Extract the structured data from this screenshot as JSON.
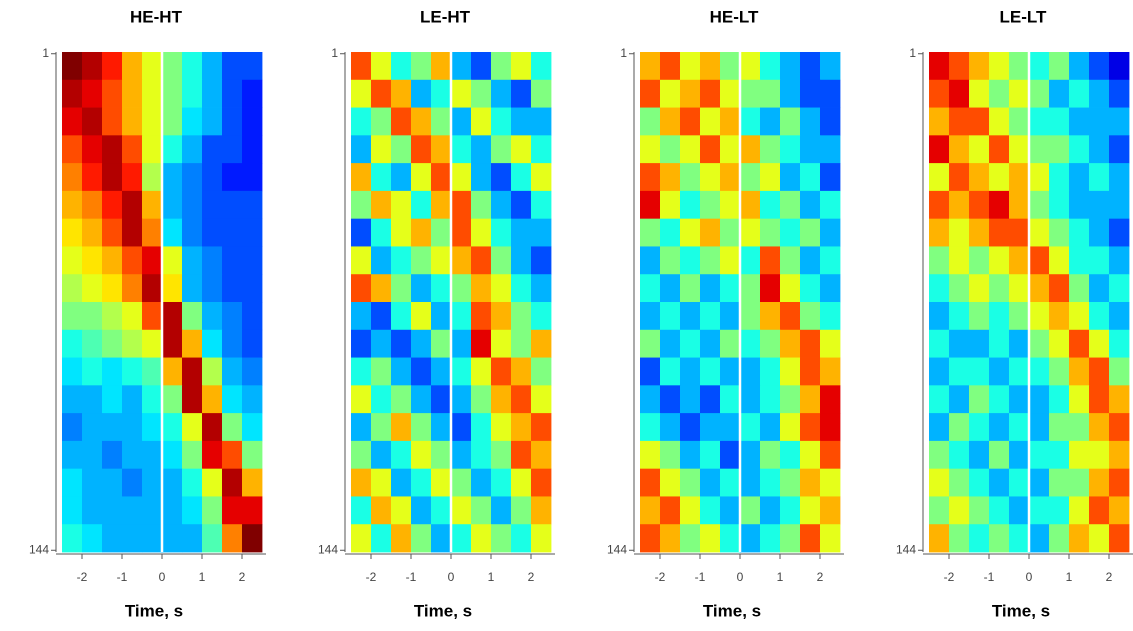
{
  "chart_data": [
    {
      "type": "heatmap",
      "title": "HE-HT",
      "xlabel": "Time, s",
      "xlim": [
        -2.6,
        2.6
      ],
      "xticks": [
        -2,
        -1,
        0,
        1,
        2
      ],
      "ylim": [
        0.5,
        144.5
      ],
      "yticks": [
        1,
        144
      ],
      "vline": 0,
      "xbins": [
        -2.5,
        -2,
        -1.5,
        -1,
        -0.5,
        0,
        0.5,
        1,
        1.5,
        2,
        2.5
      ],
      "ybins": [
        0.5,
        8.5,
        16.5,
        24.5,
        32.5,
        40.5,
        48.5,
        56.5,
        64.5,
        72.5,
        80.5,
        88.5,
        96.5,
        104.5,
        112.5,
        120.5,
        128.5,
        136.5,
        144.5
      ],
      "z": [
        [
          1,
          0.95,
          0.85,
          0.7,
          0.6,
          0.5,
          0.4,
          0.3,
          0.2,
          0.2
        ],
        [
          0.95,
          0.9,
          0.8,
          0.7,
          0.6,
          0.5,
          0.4,
          0.3,
          0.2,
          0.15
        ],
        [
          0.9,
          0.95,
          0.8,
          0.7,
          0.6,
          0.5,
          0.35,
          0.3,
          0.2,
          0.15
        ],
        [
          0.8,
          0.9,
          0.95,
          0.8,
          0.6,
          0.4,
          0.3,
          0.2,
          0.2,
          0.15
        ],
        [
          0.75,
          0.85,
          0.95,
          0.85,
          0.55,
          0.3,
          0.25,
          0.2,
          0.15,
          0.15
        ],
        [
          0.7,
          0.75,
          0.85,
          0.95,
          0.7,
          0.3,
          0.25,
          0.2,
          0.2,
          0.2
        ],
        [
          0.65,
          0.7,
          0.8,
          0.95,
          0.75,
          0.35,
          0.25,
          0.2,
          0.2,
          0.2
        ],
        [
          0.6,
          0.65,
          0.7,
          0.8,
          0.9,
          0.6,
          0.3,
          0.25,
          0.2,
          0.2
        ],
        [
          0.55,
          0.6,
          0.65,
          0.75,
          0.95,
          0.65,
          0.3,
          0.25,
          0.2,
          0.2
        ],
        [
          0.5,
          0.5,
          0.55,
          0.6,
          0.8,
          0.95,
          0.5,
          0.3,
          0.25,
          0.2
        ],
        [
          0.4,
          0.45,
          0.5,
          0.55,
          0.6,
          0.95,
          0.7,
          0.35,
          0.25,
          0.2
        ],
        [
          0.35,
          0.4,
          0.35,
          0.4,
          0.45,
          0.7,
          0.95,
          0.55,
          0.3,
          0.25
        ],
        [
          0.3,
          0.3,
          0.35,
          0.3,
          0.4,
          0.5,
          0.95,
          0.7,
          0.35,
          0.3
        ],
        [
          0.25,
          0.3,
          0.3,
          0.3,
          0.35,
          0.4,
          0.6,
          0.95,
          0.5,
          0.35
        ],
        [
          0.3,
          0.3,
          0.25,
          0.3,
          0.3,
          0.35,
          0.5,
          0.9,
          0.8,
          0.5
        ],
        [
          0.35,
          0.3,
          0.3,
          0.25,
          0.3,
          0.3,
          0.4,
          0.6,
          0.95,
          0.7
        ],
        [
          0.35,
          0.3,
          0.3,
          0.3,
          0.3,
          0.3,
          0.35,
          0.5,
          0.9,
          0.9
        ],
        [
          0.4,
          0.35,
          0.3,
          0.3,
          0.3,
          0.3,
          0.3,
          0.45,
          0.75,
          1
        ]
      ]
    },
    {
      "type": "heatmap",
      "title": "LE-HT",
      "xlabel": "Time, s",
      "xlim": [
        -2.6,
        2.6
      ],
      "xticks": [
        -2,
        -1,
        0,
        1,
        2
      ],
      "ylim": [
        0.5,
        144.5
      ],
      "yticks": [
        1,
        144
      ],
      "vline": 0,
      "xbins": [
        -2.5,
        -2,
        -1.5,
        -1,
        -0.5,
        0,
        0.5,
        1,
        1.5,
        2,
        2.5
      ],
      "ybins": [
        0.5,
        8.5,
        16.5,
        24.5,
        32.5,
        40.5,
        48.5,
        56.5,
        64.5,
        72.5,
        80.5,
        88.5,
        96.5,
        104.5,
        112.5,
        120.5,
        128.5,
        136.5,
        144.5
      ],
      "z": [
        [
          0.8,
          0.6,
          0.4,
          0.5,
          0.7,
          0.3,
          0.2,
          0.5,
          0.6,
          0.4
        ],
        [
          0.6,
          0.8,
          0.7,
          0.3,
          0.4,
          0.6,
          0.5,
          0.3,
          0.2,
          0.5
        ],
        [
          0.4,
          0.5,
          0.8,
          0.7,
          0.5,
          0.3,
          0.6,
          0.4,
          0.3,
          0.3
        ],
        [
          0.3,
          0.6,
          0.5,
          0.8,
          0.7,
          0.4,
          0.3,
          0.5,
          0.6,
          0.4
        ],
        [
          0.7,
          0.4,
          0.3,
          0.6,
          0.8,
          0.6,
          0.3,
          0.2,
          0.4,
          0.6
        ],
        [
          0.5,
          0.7,
          0.6,
          0.4,
          0.7,
          0.8,
          0.5,
          0.3,
          0.2,
          0.4
        ],
        [
          0.2,
          0.4,
          0.6,
          0.7,
          0.5,
          0.8,
          0.6,
          0.4,
          0.3,
          0.3
        ],
        [
          0.6,
          0.3,
          0.4,
          0.5,
          0.6,
          0.7,
          0.8,
          0.5,
          0.3,
          0.2
        ],
        [
          0.8,
          0.7,
          0.5,
          0.3,
          0.4,
          0.5,
          0.7,
          0.6,
          0.4,
          0.3
        ],
        [
          0.3,
          0.2,
          0.4,
          0.6,
          0.3,
          0.4,
          0.8,
          0.7,
          0.5,
          0.4
        ],
        [
          0.2,
          0.3,
          0.2,
          0.3,
          0.5,
          0.3,
          0.9,
          0.6,
          0.5,
          0.7
        ],
        [
          0.4,
          0.5,
          0.3,
          0.2,
          0.3,
          0.4,
          0.6,
          0.8,
          0.7,
          0.5
        ],
        [
          0.6,
          0.4,
          0.5,
          0.3,
          0.2,
          0.3,
          0.5,
          0.7,
          0.8,
          0.6
        ],
        [
          0.3,
          0.5,
          0.7,
          0.5,
          0.3,
          0.2,
          0.4,
          0.6,
          0.7,
          0.8
        ],
        [
          0.5,
          0.3,
          0.4,
          0.6,
          0.5,
          0.3,
          0.4,
          0.5,
          0.8,
          0.7
        ],
        [
          0.7,
          0.6,
          0.3,
          0.4,
          0.6,
          0.5,
          0.3,
          0.4,
          0.6,
          0.8
        ],
        [
          0.4,
          0.7,
          0.6,
          0.3,
          0.4,
          0.6,
          0.5,
          0.3,
          0.5,
          0.7
        ],
        [
          0.6,
          0.4,
          0.7,
          0.5,
          0.3,
          0.4,
          0.6,
          0.5,
          0.4,
          0.6
        ]
      ]
    },
    {
      "type": "heatmap",
      "title": "HE-LT",
      "xlabel": "Time, s",
      "xlim": [
        -2.6,
        2.6
      ],
      "xticks": [
        -2,
        -1,
        0,
        1,
        2
      ],
      "ylim": [
        0.5,
        144.5
      ],
      "yticks": [
        1,
        144
      ],
      "vline": 0,
      "xbins": [
        -2.5,
        -2,
        -1.5,
        -1,
        -0.5,
        0,
        0.5,
        1,
        1.5,
        2,
        2.5
      ],
      "ybins": [
        0.5,
        8.5,
        16.5,
        24.5,
        32.5,
        40.5,
        48.5,
        56.5,
        64.5,
        72.5,
        80.5,
        88.5,
        96.5,
        104.5,
        112.5,
        120.5,
        128.5,
        136.5,
        144.5
      ],
      "z": [
        [
          0.7,
          0.8,
          0.6,
          0.7,
          0.5,
          0.6,
          0.4,
          0.3,
          0.2,
          0.3
        ],
        [
          0.8,
          0.6,
          0.7,
          0.8,
          0.6,
          0.5,
          0.5,
          0.3,
          0.2,
          0.2
        ],
        [
          0.5,
          0.7,
          0.8,
          0.6,
          0.7,
          0.4,
          0.3,
          0.5,
          0.3,
          0.2
        ],
        [
          0.6,
          0.5,
          0.6,
          0.8,
          0.6,
          0.7,
          0.5,
          0.4,
          0.3,
          0.3
        ],
        [
          0.8,
          0.7,
          0.5,
          0.6,
          0.7,
          0.5,
          0.6,
          0.3,
          0.4,
          0.2
        ],
        [
          0.9,
          0.6,
          0.4,
          0.5,
          0.6,
          0.7,
          0.4,
          0.5,
          0.3,
          0.4
        ],
        [
          0.5,
          0.4,
          0.6,
          0.7,
          0.5,
          0.6,
          0.5,
          0.4,
          0.5,
          0.3
        ],
        [
          0.3,
          0.5,
          0.4,
          0.5,
          0.6,
          0.4,
          0.8,
          0.5,
          0.3,
          0.4
        ],
        [
          0.4,
          0.3,
          0.5,
          0.3,
          0.4,
          0.5,
          0.9,
          0.6,
          0.4,
          0.3
        ],
        [
          0.3,
          0.4,
          0.3,
          0.4,
          0.3,
          0.5,
          0.7,
          0.8,
          0.5,
          0.4
        ],
        [
          0.5,
          0.3,
          0.4,
          0.3,
          0.5,
          0.4,
          0.5,
          0.7,
          0.8,
          0.6
        ],
        [
          0.2,
          0.4,
          0.3,
          0.4,
          0.3,
          0.3,
          0.4,
          0.6,
          0.8,
          0.7
        ],
        [
          0.3,
          0.2,
          0.3,
          0.2,
          0.4,
          0.3,
          0.4,
          0.5,
          0.7,
          0.9
        ],
        [
          0.4,
          0.3,
          0.2,
          0.3,
          0.3,
          0.4,
          0.3,
          0.6,
          0.8,
          0.9
        ],
        [
          0.6,
          0.5,
          0.3,
          0.4,
          0.2,
          0.3,
          0.5,
          0.4,
          0.6,
          0.8
        ],
        [
          0.8,
          0.6,
          0.5,
          0.3,
          0.4,
          0.3,
          0.4,
          0.5,
          0.7,
          0.6
        ],
        [
          0.7,
          0.8,
          0.6,
          0.4,
          0.3,
          0.5,
          0.3,
          0.4,
          0.6,
          0.7
        ],
        [
          0.8,
          0.7,
          0.5,
          0.6,
          0.4,
          0.3,
          0.4,
          0.5,
          0.8,
          0.6
        ]
      ]
    },
    {
      "type": "heatmap",
      "title": "LE-LT",
      "xlabel": "Time, s",
      "xlim": [
        -2.6,
        2.6
      ],
      "xticks": [
        -2,
        -1,
        0,
        1,
        2
      ],
      "ylim": [
        0.5,
        144.5
      ],
      "yticks": [
        1,
        144
      ],
      "vline": 0,
      "xbins": [
        -2.5,
        -2,
        -1.5,
        -1,
        -0.5,
        0,
        0.5,
        1,
        1.5,
        2,
        2.5
      ],
      "ybins": [
        0.5,
        8.5,
        16.5,
        24.5,
        32.5,
        40.5,
        48.5,
        56.5,
        64.5,
        72.5,
        80.5,
        88.5,
        96.5,
        104.5,
        112.5,
        120.5,
        128.5,
        136.5,
        144.5
      ],
      "z": [
        [
          0.9,
          0.8,
          0.7,
          0.6,
          0.5,
          0.4,
          0.5,
          0.3,
          0.2,
          0.1
        ],
        [
          0.8,
          0.9,
          0.6,
          0.5,
          0.6,
          0.5,
          0.3,
          0.4,
          0.3,
          0.2
        ],
        [
          0.7,
          0.8,
          0.8,
          0.6,
          0.5,
          0.4,
          0.4,
          0.3,
          0.3,
          0.3
        ],
        [
          0.9,
          0.7,
          0.6,
          0.8,
          0.6,
          0.5,
          0.5,
          0.4,
          0.3,
          0.2
        ],
        [
          0.6,
          0.8,
          0.7,
          0.6,
          0.7,
          0.6,
          0.4,
          0.3,
          0.4,
          0.3
        ],
        [
          0.8,
          0.7,
          0.8,
          0.9,
          0.7,
          0.5,
          0.4,
          0.3,
          0.3,
          0.3
        ],
        [
          0.7,
          0.6,
          0.7,
          0.8,
          0.8,
          0.6,
          0.5,
          0.4,
          0.3,
          0.2
        ],
        [
          0.5,
          0.6,
          0.5,
          0.6,
          0.7,
          0.8,
          0.6,
          0.4,
          0.4,
          0.3
        ],
        [
          0.4,
          0.5,
          0.6,
          0.5,
          0.6,
          0.7,
          0.8,
          0.5,
          0.3,
          0.4
        ],
        [
          0.3,
          0.4,
          0.5,
          0.4,
          0.5,
          0.6,
          0.7,
          0.6,
          0.4,
          0.3
        ],
        [
          0.4,
          0.3,
          0.3,
          0.4,
          0.3,
          0.5,
          0.6,
          0.8,
          0.6,
          0.4
        ],
        [
          0.3,
          0.4,
          0.4,
          0.3,
          0.4,
          0.4,
          0.5,
          0.7,
          0.8,
          0.5
        ],
        [
          0.4,
          0.3,
          0.5,
          0.4,
          0.3,
          0.3,
          0.4,
          0.6,
          0.8,
          0.7
        ],
        [
          0.3,
          0.5,
          0.4,
          0.3,
          0.4,
          0.3,
          0.5,
          0.5,
          0.7,
          0.8
        ],
        [
          0.5,
          0.4,
          0.3,
          0.5,
          0.3,
          0.4,
          0.4,
          0.6,
          0.6,
          0.7
        ],
        [
          0.6,
          0.5,
          0.4,
          0.3,
          0.4,
          0.3,
          0.5,
          0.5,
          0.7,
          0.8
        ],
        [
          0.5,
          0.6,
          0.5,
          0.4,
          0.3,
          0.4,
          0.4,
          0.6,
          0.8,
          0.7
        ],
        [
          0.7,
          0.5,
          0.4,
          0.5,
          0.4,
          0.3,
          0.5,
          0.7,
          0.6,
          0.8
        ]
      ]
    }
  ]
}
